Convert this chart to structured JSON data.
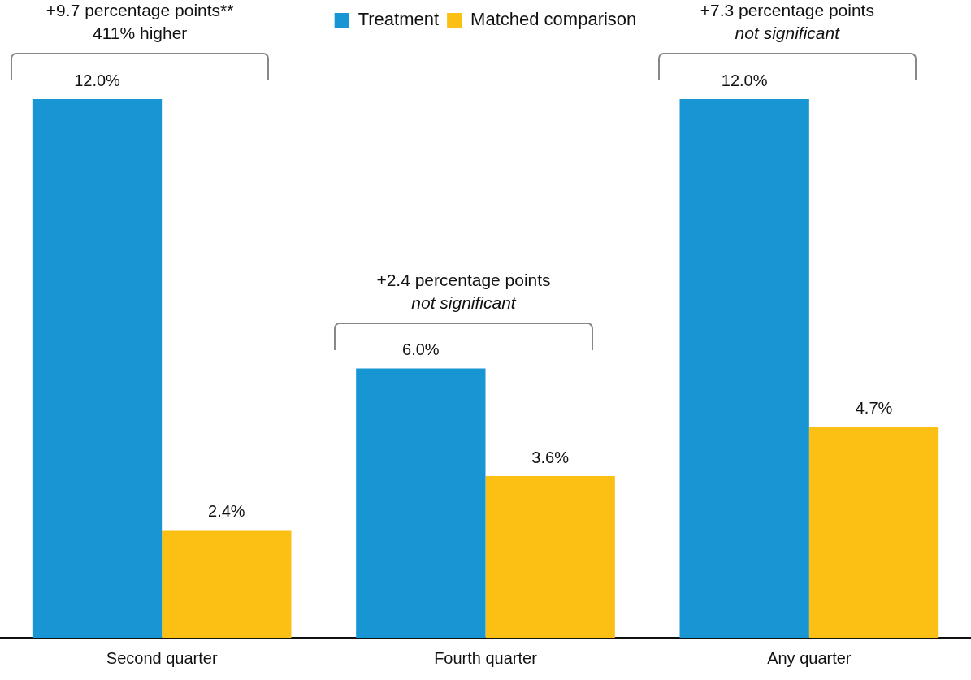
{
  "chart_data": {
    "type": "bar",
    "categories": [
      "Second quarter",
      "Fourth quarter",
      "Any quarter"
    ],
    "series": [
      {
        "name": "Treatment",
        "color": "#1896d3",
        "values": [
          12.0,
          6.0,
          12.0
        ],
        "value_labels": [
          "12.0%",
          "6.0%",
          "12.0%"
        ]
      },
      {
        "name": "Matched comparison",
        "color": "#fcbf14",
        "values": [
          2.4,
          3.6,
          4.7
        ],
        "value_labels": [
          "2.4%",
          "3.6%",
          "4.7%"
        ]
      }
    ],
    "legend": "top",
    "grid": false,
    "annotations": [
      "+9.7 percentage points**\n411% higher",
      "+2.4 percentage points\nnot significant",
      "+7.3 percentage points\nnot significant"
    ]
  }
}
